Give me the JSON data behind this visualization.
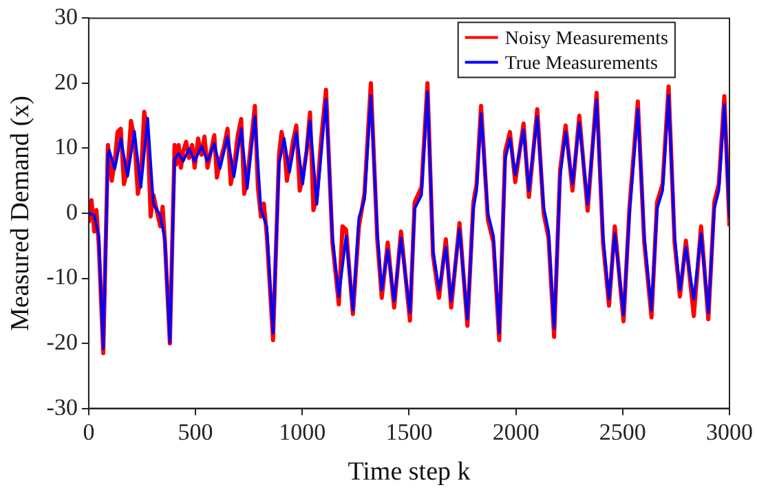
{
  "chart_data": {
    "type": "line",
    "xlabel": "Time step k",
    "ylabel": "Measured Demand (x)",
    "xlim": [
      0,
      3000
    ],
    "xticks": [
      0,
      500,
      1000,
      1500,
      2000,
      2500,
      3000
    ],
    "ylim": [
      -30,
      30
    ],
    "yticks": [
      -30,
      -20,
      -10,
      0,
      10,
      20,
      30
    ],
    "grid": false,
    "legend": "top right",
    "marker": "none",
    "line_style": "solid",
    "series": [
      {
        "name": "Noisy Measurements",
        "color": "#ff0000",
        "x": [
          0,
          13,
          26,
          36,
          47,
          68,
          90,
          96,
          108,
          122,
          135,
          150,
          165,
          182,
          198,
          214,
          230,
          244,
          260,
          276,
          290,
          303,
          318,
          335,
          346,
          357,
          380,
          402,
          410,
          421,
          432,
          442,
          456,
          470,
          484,
          496,
          512,
          528,
          542,
          556,
          572,
          588,
          600,
          615,
          632,
          650,
          665,
          680,
          698,
          714,
          728,
          742,
          760,
          778,
          792,
          806,
          820,
          834,
          863,
          891,
          903,
          915,
          928,
          940,
          956,
          972,
          988,
          1002,
          1020,
          1036,
          1052,
          1068,
          1090,
          1111,
          1141,
          1171,
          1188,
          1205,
          1237,
          1265,
          1291,
          1321,
          1351,
          1372,
          1400,
          1430,
          1462,
          1504,
          1526,
          1558,
          1586,
          1612,
          1640,
          1672,
          1697,
          1736,
          1773,
          1801,
          1816,
          1837,
          1869,
          1895,
          1922,
          1950,
          1972,
          1997,
          2036,
          2061,
          2100,
          2130,
          2153,
          2179,
          2207,
          2233,
          2265,
          2297,
          2336,
          2378,
          2408,
          2436,
          2463,
          2504,
          2532,
          2571,
          2601,
          2635,
          2661,
          2687,
          2715,
          2743,
          2768,
          2796,
          2833,
          2867,
          2901,
          2929,
          2950,
          2976,
          3000
        ],
        "values": [
          -1.5,
          2,
          -2.8,
          0.5,
          -4.8,
          -21.5,
          10.5,
          8.5,
          5,
          8,
          12.5,
          13,
          4.5,
          6.8,
          14.2,
          11.5,
          3,
          5.5,
          15.6,
          12.5,
          -0.5,
          2.8,
          0.5,
          -2,
          1,
          -4.5,
          -20,
          10.5,
          7.5,
          10.5,
          7,
          9.5,
          11,
          8.5,
          10.5,
          7,
          11.5,
          9,
          11.8,
          7,
          9.5,
          12,
          5.5,
          8,
          10,
          13,
          4.5,
          7,
          12,
          14.5,
          3,
          5,
          11,
          16.5,
          4,
          -0.5,
          1.5,
          -3.5,
          -19.5,
          9,
          12.5,
          10.5,
          5,
          7.5,
          11,
          13.5,
          3.5,
          5.5,
          9.5,
          15.5,
          0.5,
          2.5,
          12,
          19,
          -4.5,
          -14,
          -2,
          -2.5,
          -15.5,
          -2,
          3,
          20,
          -4,
          -13,
          -4.5,
          -14.5,
          -2.8,
          -16.5,
          1.7,
          4,
          20,
          -6.5,
          -13,
          -4,
          -14.5,
          -1.5,
          -17.3,
          1.7,
          4.5,
          16.5,
          -1,
          -4.5,
          -19.5,
          9.5,
          12.5,
          4.8,
          13.8,
          2.5,
          16,
          0,
          -3.8,
          -19,
          6.6,
          13.5,
          3.5,
          15,
          0.4,
          18.5,
          -4.5,
          -14.2,
          -2,
          -16.6,
          1,
          17.2,
          -4.5,
          -16,
          1.7,
          4.5,
          19.5,
          -4.5,
          -12.8,
          -4.2,
          -15.8,
          -2,
          -16.3,
          1.7,
          4.5,
          18,
          -2
        ]
      },
      {
        "name": "True Measurements",
        "color": "#0000ff",
        "x": [
          0,
          26,
          47,
          68,
          90,
          96,
          122,
          150,
          182,
          214,
          244,
          276,
          303,
          335,
          357,
          380,
          402,
          421,
          442,
          470,
          496,
          528,
          556,
          588,
          615,
          650,
          680,
          714,
          742,
          778,
          806,
          834,
          863,
          891,
          915,
          940,
          972,
          1002,
          1036,
          1068,
          1111,
          1141,
          1171,
          1205,
          1237,
          1265,
          1291,
          1321,
          1351,
          1372,
          1400,
          1430,
          1462,
          1504,
          1526,
          1558,
          1586,
          1612,
          1640,
          1672,
          1697,
          1736,
          1773,
          1801,
          1816,
          1837,
          1869,
          1895,
          1922,
          1950,
          1972,
          1997,
          2036,
          2061,
          2100,
          2130,
          2153,
          2179,
          2207,
          2233,
          2265,
          2297,
          2336,
          2378,
          2408,
          2436,
          2463,
          2504,
          2532,
          2571,
          2601,
          2635,
          2661,
          2687,
          2715,
          2743,
          2768,
          2796,
          2833,
          2867,
          2901,
          2929,
          2950,
          2976,
          3000
        ],
        "values": [
          0,
          -0.3,
          -3.5,
          -20.8,
          9,
          9.7,
          6.8,
          11.5,
          5.7,
          12.6,
          4,
          14.6,
          1.4,
          -0.3,
          -4.2,
          -19.8,
          8.3,
          9.2,
          8,
          9.9,
          8,
          10.3,
          8,
          10.7,
          6.9,
          11.8,
          5.6,
          13,
          3.8,
          14.9,
          0.7,
          -2.1,
          -18.4,
          7.6,
          11.5,
          6.3,
          12.4,
          4.5,
          14.2,
          1.4,
          17.5,
          -3.5,
          -12.8,
          -3.5,
          -14.9,
          -0.7,
          2.1,
          18.1,
          -2.8,
          -11.8,
          -5.6,
          -13.5,
          -3.8,
          -15.3,
          0.7,
          2.8,
          18.7,
          -5.6,
          -11.8,
          -5.2,
          -13.5,
          -2.4,
          -16.3,
          0.7,
          3.5,
          15.3,
          0,
          -3.5,
          -18.4,
          8.3,
          11.5,
          5.9,
          12.8,
          3.5,
          14.9,
          1,
          -2.8,
          -17.7,
          5.6,
          12.5,
          4.5,
          13.9,
          1.4,
          17.4,
          -3.5,
          -13.2,
          -3.1,
          -15.6,
          0,
          16,
          -3.5,
          -14.9,
          0.7,
          3.5,
          18.1,
          -3.5,
          -11.8,
          -5.2,
          -13.2,
          -3.1,
          -15.3,
          0.7,
          3.5,
          16.7,
          -0.7
        ]
      }
    ]
  }
}
